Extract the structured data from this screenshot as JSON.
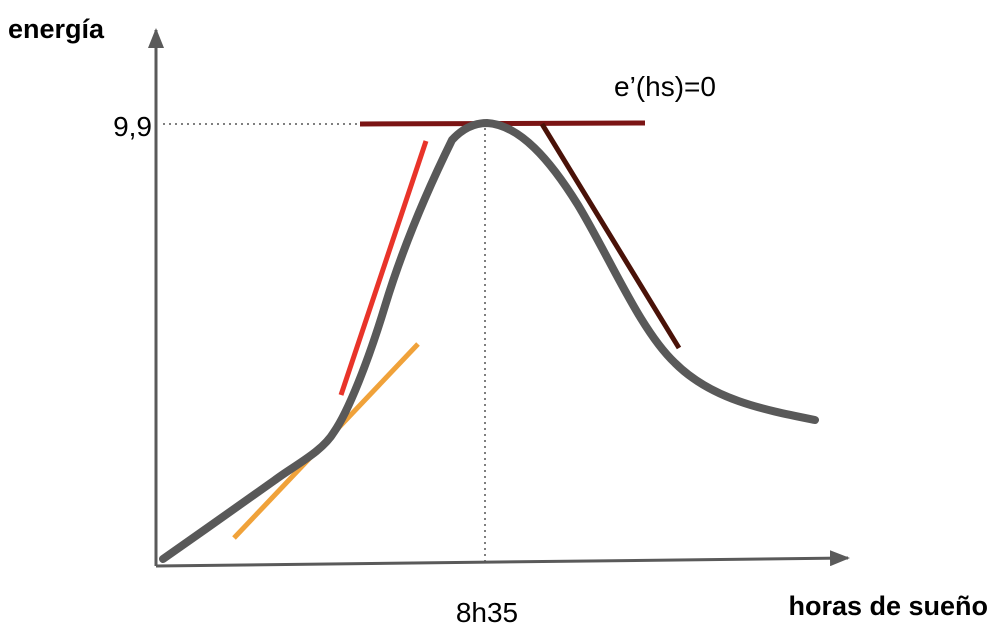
{
  "labels": {
    "y_axis": "energía",
    "x_axis": "horas de sueño",
    "peak_value": "9,9",
    "peak_time": "8h35",
    "tangent_note": "e’(hs)=0"
  },
  "colors": {
    "axis": "#5a5a5a",
    "curve": "#595959",
    "guide": "#555555",
    "tangent_horizontal": "#7b1414",
    "tangent_steep_rise": "#e8342a",
    "tangent_gentle_rise": "#f0a23a",
    "tangent_fall": "#4a1208"
  }
}
